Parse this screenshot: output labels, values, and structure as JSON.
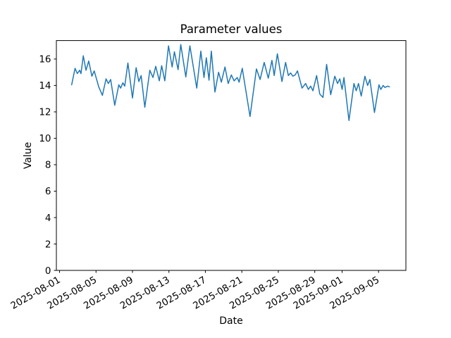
{
  "chart_data": {
    "type": "line",
    "title": "Parameter values",
    "xlabel": "Date",
    "ylabel": "Value",
    "line_color": "#1f77b4",
    "line_width": 1.5,
    "grid": false,
    "legend_position": "none",
    "x_unit": "days since 2025-08-01",
    "xlim": [
      -0.35,
      38.0
    ],
    "ylim": [
      0,
      17.4
    ],
    "x_ticks": [
      {
        "label": "2025-08-01",
        "day": 0
      },
      {
        "label": "2025-08-05",
        "day": 4
      },
      {
        "label": "2025-08-09",
        "day": 8
      },
      {
        "label": "2025-08-13",
        "day": 12
      },
      {
        "label": "2025-08-17",
        "day": 16
      },
      {
        "label": "2025-08-21",
        "day": 20
      },
      {
        "label": "2025-08-25",
        "day": 24
      },
      {
        "label": "2025-08-29",
        "day": 28
      },
      {
        "label": "2025-09-01",
        "day": 31
      },
      {
        "label": "2025-09-05",
        "day": 35
      }
    ],
    "y_ticks": [
      0,
      2,
      4,
      6,
      8,
      10,
      12,
      14,
      16
    ],
    "points": [
      [
        1.33,
        14.05
      ],
      [
        1.7,
        15.3
      ],
      [
        1.95,
        14.9
      ],
      [
        2.2,
        15.15
      ],
      [
        2.35,
        14.9
      ],
      [
        2.6,
        16.25
      ],
      [
        2.9,
        15.15
      ],
      [
        3.2,
        15.85
      ],
      [
        3.55,
        14.7
      ],
      [
        3.8,
        15.1
      ],
      [
        4.3,
        13.9
      ],
      [
        4.7,
        13.25
      ],
      [
        5.1,
        14.5
      ],
      [
        5.35,
        14.15
      ],
      [
        5.6,
        14.45
      ],
      [
        6.05,
        12.5
      ],
      [
        6.5,
        14.05
      ],
      [
        6.7,
        13.8
      ],
      [
        6.95,
        14.2
      ],
      [
        7.15,
        13.95
      ],
      [
        7.5,
        15.7
      ],
      [
        8.0,
        13.05
      ],
      [
        8.4,
        15.35
      ],
      [
        8.7,
        14.3
      ],
      [
        8.95,
        14.75
      ],
      [
        9.35,
        12.35
      ],
      [
        9.9,
        15.15
      ],
      [
        10.25,
        14.6
      ],
      [
        10.55,
        15.45
      ],
      [
        10.95,
        14.35
      ],
      [
        11.2,
        15.5
      ],
      [
        11.55,
        14.35
      ],
      [
        11.95,
        17.0
      ],
      [
        12.35,
        15.4
      ],
      [
        12.6,
        16.55
      ],
      [
        13.0,
        15.2
      ],
      [
        13.3,
        17.1
      ],
      [
        13.85,
        14.65
      ],
      [
        14.3,
        17.0
      ],
      [
        15.05,
        13.8
      ],
      [
        15.5,
        16.6
      ],
      [
        15.85,
        14.6
      ],
      [
        16.1,
        16.1
      ],
      [
        16.4,
        14.4
      ],
      [
        16.65,
        16.6
      ],
      [
        17.05,
        13.5
      ],
      [
        17.45,
        15.0
      ],
      [
        17.75,
        14.25
      ],
      [
        18.15,
        15.4
      ],
      [
        18.5,
        14.15
      ],
      [
        18.85,
        14.8
      ],
      [
        19.15,
        14.35
      ],
      [
        19.5,
        14.6
      ],
      [
        19.7,
        14.25
      ],
      [
        20.05,
        15.3
      ],
      [
        20.9,
        11.65
      ],
      [
        21.6,
        15.25
      ],
      [
        22.0,
        14.45
      ],
      [
        22.45,
        15.75
      ],
      [
        22.9,
        14.55
      ],
      [
        23.3,
        15.9
      ],
      [
        23.55,
        14.75
      ],
      [
        23.9,
        16.4
      ],
      [
        24.4,
        14.3
      ],
      [
        24.8,
        15.75
      ],
      [
        25.1,
        14.75
      ],
      [
        25.35,
        14.95
      ],
      [
        25.6,
        14.7
      ],
      [
        25.85,
        14.8
      ],
      [
        26.1,
        15.1
      ],
      [
        26.6,
        13.8
      ],
      [
        27.0,
        14.15
      ],
      [
        27.3,
        13.7
      ],
      [
        27.55,
        13.95
      ],
      [
        27.8,
        13.6
      ],
      [
        28.2,
        14.75
      ],
      [
        28.55,
        13.35
      ],
      [
        28.9,
        13.1
      ],
      [
        29.3,
        15.6
      ],
      [
        29.75,
        13.3
      ],
      [
        30.2,
        14.7
      ],
      [
        30.5,
        14.15
      ],
      [
        30.75,
        14.5
      ],
      [
        31.0,
        13.7
      ],
      [
        31.2,
        14.6
      ],
      [
        31.75,
        11.35
      ],
      [
        32.3,
        14.15
      ],
      [
        32.55,
        13.6
      ],
      [
        32.8,
        14.15
      ],
      [
        33.1,
        13.2
      ],
      [
        33.5,
        14.7
      ],
      [
        33.8,
        14.0
      ],
      [
        34.05,
        14.45
      ],
      [
        34.55,
        11.95
      ],
      [
        35.05,
        14.05
      ],
      [
        35.25,
        13.7
      ],
      [
        35.5,
        14.0
      ],
      [
        35.7,
        13.85
      ],
      [
        36.0,
        13.95
      ],
      [
        36.2,
        13.9
      ]
    ]
  }
}
